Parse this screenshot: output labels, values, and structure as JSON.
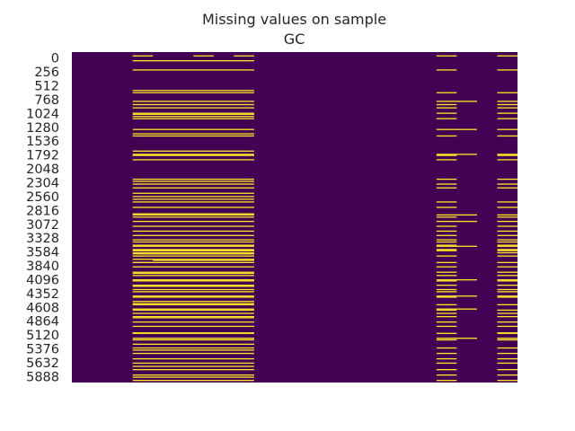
{
  "chart_data": {
    "type": "heatmap",
    "title": "Missing values on sample",
    "subtitle": "GC",
    "xlabel": "",
    "ylabel": "",
    "y_tick_labels": [
      "0",
      "256",
      "512",
      "768",
      "1024",
      "1280",
      "1536",
      "1792",
      "2048",
      "2304",
      "2560",
      "2816",
      "3072",
      "3328",
      "3584",
      "3840",
      "4096",
      "4352",
      "4608",
      "4864",
      "5120",
      "5376",
      "5632",
      "5888"
    ],
    "n_rows": 6109,
    "n_columns": 22,
    "colors": {
      "present": "#440154",
      "missing": "#fde725"
    },
    "missing_column_groups": [
      {
        "columns": [
          3,
          4,
          5,
          6,
          7,
          8
        ],
        "rows": [
          150,
          700,
          1140,
          1180,
          1500,
          1820,
          2380,
          2600,
          2660,
          2710,
          2980,
          3720,
          3820,
          4080,
          4320,
          4600,
          4640,
          4900,
          5390,
          5500,
          5800,
          6000
        ]
      },
      {
        "columns": [
          3,
          4,
          5,
          6,
          7,
          8,
          18,
          21
        ],
        "rows": [
          320,
          740,
          960,
          1020,
          1120,
          1220,
          1540,
          1900,
          1980,
          2340,
          2430,
          2500,
          2760,
          2860,
          3040,
          3210,
          3300,
          3380,
          3460,
          3500,
          3560,
          3640,
          3760,
          3880,
          3960,
          4060,
          4120,
          4220,
          4300,
          4380,
          4420,
          4520,
          4660,
          4760,
          4820,
          4880,
          4980,
          5060,
          5190,
          5310,
          5460,
          5560,
          5660,
          5740,
          5860,
          5960,
          6060
        ]
      },
      {
        "columns": [
          3,
          4,
          5,
          6,
          7,
          8,
          18,
          19,
          21
        ],
        "rows": [
          900,
          1420,
          1880,
          3000,
          3120,
          3580,
          4200,
          4500,
          5280
        ]
      },
      {
        "columns": [
          3,
          4,
          5,
          6,
          7,
          8,
          21
        ],
        "rows": [
          3660,
          3700
        ]
      },
      {
        "columns": [
          3,
          4,
          5,
          6,
          7,
          8,
          18,
          19
        ],
        "rows": [
          4740
        ]
      },
      {
        "columns": [
          3
        ],
        "rows": [
          3880
        ]
      },
      {
        "columns": [
          4,
          5,
          6,
          7,
          8
        ],
        "rows": [
          3840
        ]
      },
      {
        "columns": [
          3
        ],
        "rows": [
          60
        ]
      },
      {
        "columns": [
          6
        ],
        "rows": [
          60
        ]
      },
      {
        "columns": [
          8
        ],
        "rows": [
          60
        ]
      },
      {
        "columns": [
          18
        ],
        "rows": [
          60
        ]
      },
      {
        "columns": [
          21
        ],
        "rows": [
          60
        ]
      },
      {
        "columns": [
          3,
          4,
          5,
          6,
          7,
          8,
          18
        ],
        "rows": [
          3660
        ]
      },
      {
        "columns": [
          3,
          4,
          5,
          6,
          7,
          8,
          21
        ],
        "rows": [
          5180
        ]
      }
    ]
  }
}
